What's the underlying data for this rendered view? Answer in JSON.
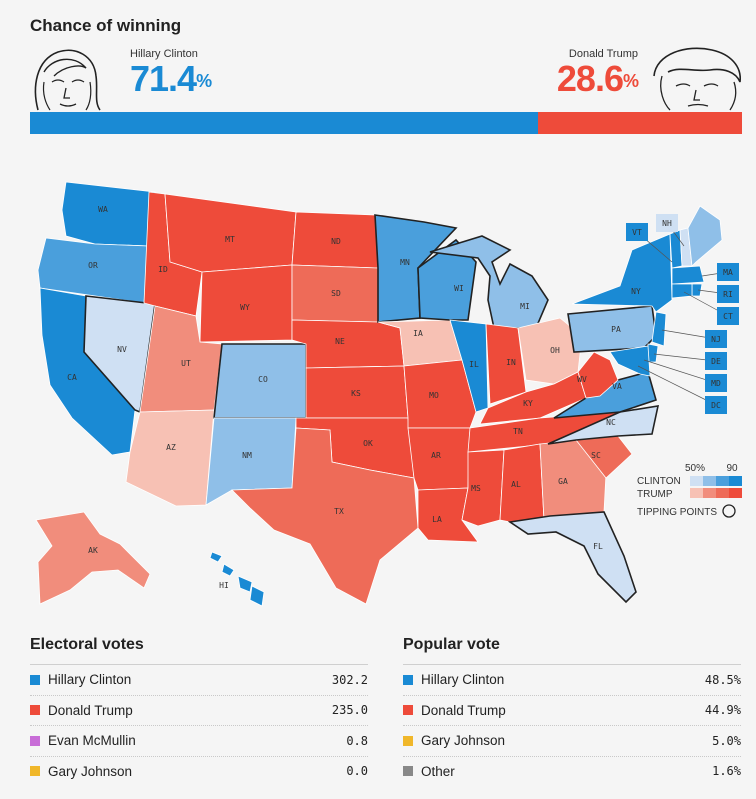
{
  "header": {
    "title": "Chance of winning",
    "clinton": {
      "name": "Hillary Clinton",
      "value": "71.4",
      "unit": "%"
    },
    "trump": {
      "name": "Donald Trump",
      "value": "28.6",
      "unit": "%"
    }
  },
  "colors": {
    "clinton": "#1a8ad4",
    "trump": "#ee4b3a",
    "mcmullin": "#c86dd7",
    "johnson": "#f0b72a",
    "other": "#888888",
    "background": "#f5f5f5"
  },
  "legend": {
    "clinton_label": "CLINTON",
    "trump_label": "TRUMP",
    "tick_low": "50%",
    "tick_high": "90",
    "tipping_label": "TIPPING POINTS"
  },
  "chart_data": [
    {
      "type": "bar",
      "title": "Chance of winning",
      "categories": [
        "Hillary Clinton",
        "Donald Trump"
      ],
      "values": [
        71.4,
        28.6
      ],
      "unit": "%"
    },
    {
      "type": "map",
      "lean_levels": [
        "clinton-strong",
        "clinton-likely",
        "clinton-lean",
        "clinton-tilt",
        "trump-tilt",
        "trump-lean",
        "trump-likely",
        "trump-strong"
      ],
      "states": [
        {
          "abbr": "WA",
          "lean": "clinton-strong"
        },
        {
          "abbr": "OR",
          "lean": "clinton-likely"
        },
        {
          "abbr": "CA",
          "lean": "clinton-strong"
        },
        {
          "abbr": "NV",
          "lean": "clinton-tilt"
        },
        {
          "abbr": "ID",
          "lean": "trump-strong"
        },
        {
          "abbr": "MT",
          "lean": "trump-strong"
        },
        {
          "abbr": "WY",
          "lean": "trump-strong"
        },
        {
          "abbr": "UT",
          "lean": "trump-lean"
        },
        {
          "abbr": "AZ",
          "lean": "trump-tilt"
        },
        {
          "abbr": "CO",
          "lean": "clinton-lean"
        },
        {
          "abbr": "NM",
          "lean": "clinton-lean"
        },
        {
          "abbr": "ND",
          "lean": "trump-strong"
        },
        {
          "abbr": "SD",
          "lean": "trump-likely"
        },
        {
          "abbr": "NE",
          "lean": "trump-strong"
        },
        {
          "abbr": "KS",
          "lean": "trump-strong"
        },
        {
          "abbr": "OK",
          "lean": "trump-strong"
        },
        {
          "abbr": "TX",
          "lean": "trump-likely"
        },
        {
          "abbr": "MN",
          "lean": "clinton-likely"
        },
        {
          "abbr": "IA",
          "lean": "trump-tilt"
        },
        {
          "abbr": "MO",
          "lean": "trump-strong"
        },
        {
          "abbr": "AR",
          "lean": "trump-strong"
        },
        {
          "abbr": "LA",
          "lean": "trump-strong"
        },
        {
          "abbr": "WI",
          "lean": "clinton-likely"
        },
        {
          "abbr": "IL",
          "lean": "clinton-strong"
        },
        {
          "abbr": "MI",
          "lean": "clinton-lean"
        },
        {
          "abbr": "IN",
          "lean": "trump-strong"
        },
        {
          "abbr": "OH",
          "lean": "trump-tilt"
        },
        {
          "abbr": "KY",
          "lean": "trump-strong"
        },
        {
          "abbr": "TN",
          "lean": "trump-strong"
        },
        {
          "abbr": "MS",
          "lean": "trump-strong"
        },
        {
          "abbr": "AL",
          "lean": "trump-strong"
        },
        {
          "abbr": "GA",
          "lean": "trump-lean"
        },
        {
          "abbr": "FL",
          "lean": "clinton-tilt"
        },
        {
          "abbr": "SC",
          "lean": "trump-likely"
        },
        {
          "abbr": "NC",
          "lean": "clinton-tilt"
        },
        {
          "abbr": "VA",
          "lean": "clinton-likely"
        },
        {
          "abbr": "WV",
          "lean": "trump-strong"
        },
        {
          "abbr": "PA",
          "lean": "clinton-lean"
        },
        {
          "abbr": "NY",
          "lean": "clinton-strong"
        },
        {
          "abbr": "VT",
          "lean": "clinton-strong"
        },
        {
          "abbr": "NH",
          "lean": "clinton-tilt"
        },
        {
          "abbr": "ME",
          "lean": "clinton-lean"
        },
        {
          "abbr": "MA",
          "lean": "clinton-strong"
        },
        {
          "abbr": "RI",
          "lean": "clinton-strong"
        },
        {
          "abbr": "CT",
          "lean": "clinton-strong"
        },
        {
          "abbr": "NJ",
          "lean": "clinton-strong"
        },
        {
          "abbr": "DE",
          "lean": "clinton-strong"
        },
        {
          "abbr": "MD",
          "lean": "clinton-strong"
        },
        {
          "abbr": "DC",
          "lean": "clinton-strong"
        },
        {
          "abbr": "AK",
          "lean": "trump-lean"
        },
        {
          "abbr": "HI",
          "lean": "clinton-strong"
        }
      ],
      "tipping_points": [
        "NV",
        "CO",
        "PA",
        "MI",
        "FL",
        "NC",
        "WI",
        "MN",
        "VA"
      ]
    },
    {
      "type": "table",
      "title": "Electoral votes",
      "rows": [
        {
          "name": "Hillary Clinton",
          "value": "302.2",
          "color": "#1a8ad4"
        },
        {
          "name": "Donald Trump",
          "value": "235.0",
          "color": "#ee4b3a"
        },
        {
          "name": "Evan McMullin",
          "value": "0.8",
          "color": "#c86dd7"
        },
        {
          "name": "Gary Johnson",
          "value": "0.0",
          "color": "#f0b72a"
        }
      ]
    },
    {
      "type": "table",
      "title": "Popular vote",
      "rows": [
        {
          "name": "Hillary Clinton",
          "value": "48.5%",
          "color": "#1a8ad4"
        },
        {
          "name": "Donald Trump",
          "value": "44.9%",
          "color": "#ee4b3a"
        },
        {
          "name": "Gary Johnson",
          "value": "5.0%",
          "color": "#f0b72a"
        },
        {
          "name": "Other",
          "value": "1.6%",
          "color": "#888888"
        }
      ]
    }
  ]
}
